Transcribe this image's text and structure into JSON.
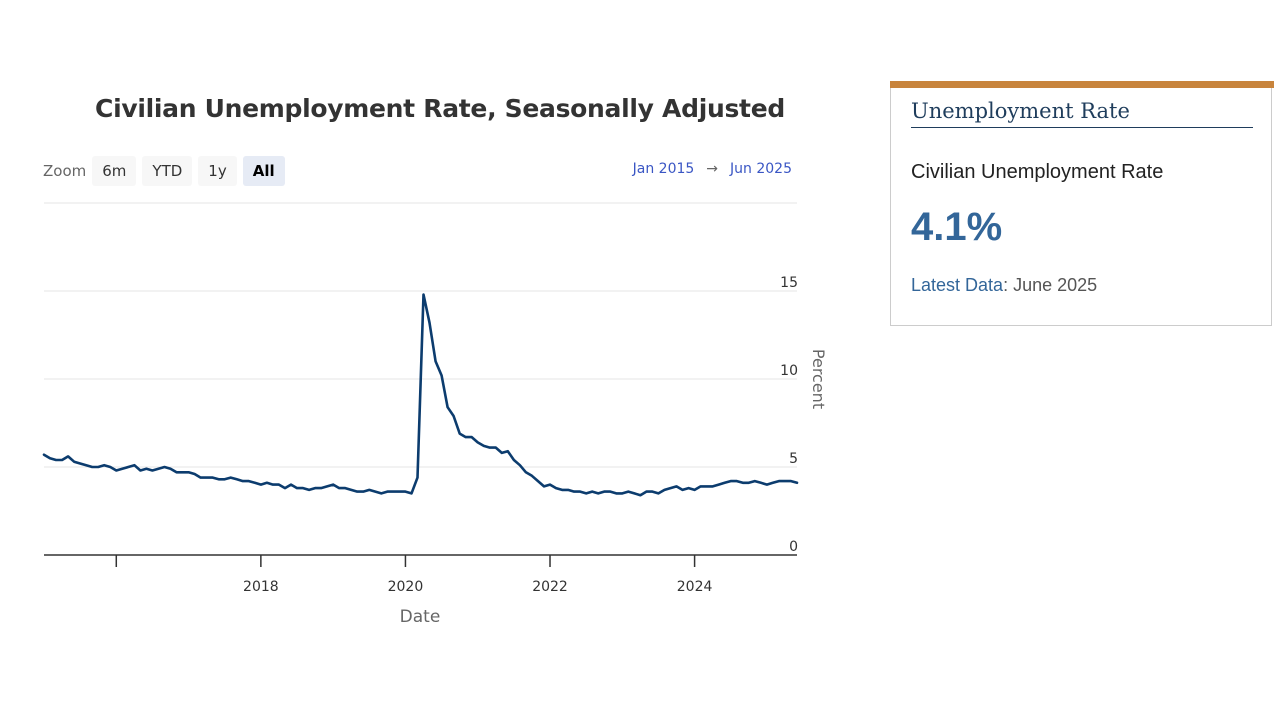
{
  "chart_data": {
    "type": "line",
    "title": "Civilian Unemployment Rate, Seasonally Adjusted",
    "xlabel": "Date",
    "ylabel": "Percent",
    "x_tick_labels": [
      "2018",
      "2020",
      "2022",
      "2024"
    ],
    "y_ticks": [
      0,
      5,
      10,
      15
    ],
    "ylim": [
      0,
      15
    ],
    "xlim": [
      "2015-01",
      "2025-06"
    ],
    "grid": true,
    "series": [
      {
        "color": "#0c3c6e",
        "x": [
          "2015-01",
          "2015-02",
          "2015-03",
          "2015-04",
          "2015-05",
          "2015-06",
          "2015-07",
          "2015-08",
          "2015-09",
          "2015-10",
          "2015-11",
          "2015-12",
          "2016-01",
          "2016-02",
          "2016-03",
          "2016-04",
          "2016-05",
          "2016-06",
          "2016-07",
          "2016-08",
          "2016-09",
          "2016-10",
          "2016-11",
          "2016-12",
          "2017-01",
          "2017-02",
          "2017-03",
          "2017-04",
          "2017-05",
          "2017-06",
          "2017-07",
          "2017-08",
          "2017-09",
          "2017-10",
          "2017-11",
          "2017-12",
          "2018-01",
          "2018-02",
          "2018-03",
          "2018-04",
          "2018-05",
          "2018-06",
          "2018-07",
          "2018-08",
          "2018-09",
          "2018-10",
          "2018-11",
          "2018-12",
          "2019-01",
          "2019-02",
          "2019-03",
          "2019-04",
          "2019-05",
          "2019-06",
          "2019-07",
          "2019-08",
          "2019-09",
          "2019-10",
          "2019-11",
          "2019-12",
          "2020-01",
          "2020-02",
          "2020-03",
          "2020-04",
          "2020-05",
          "2020-06",
          "2020-07",
          "2020-08",
          "2020-09",
          "2020-10",
          "2020-11",
          "2020-12",
          "2021-01",
          "2021-02",
          "2021-03",
          "2021-04",
          "2021-05",
          "2021-06",
          "2021-07",
          "2021-08",
          "2021-09",
          "2021-10",
          "2021-11",
          "2021-12",
          "2022-01",
          "2022-02",
          "2022-03",
          "2022-04",
          "2022-05",
          "2022-06",
          "2022-07",
          "2022-08",
          "2022-09",
          "2022-10",
          "2022-11",
          "2022-12",
          "2023-01",
          "2023-02",
          "2023-03",
          "2023-04",
          "2023-05",
          "2023-06",
          "2023-07",
          "2023-08",
          "2023-09",
          "2023-10",
          "2023-11",
          "2023-12",
          "2024-01",
          "2024-02",
          "2024-03",
          "2024-04",
          "2024-05",
          "2024-06",
          "2024-07",
          "2024-08",
          "2024-09",
          "2024-10",
          "2024-11",
          "2024-12",
          "2025-01",
          "2025-02",
          "2025-03",
          "2025-04",
          "2025-05",
          "2025-06"
        ],
        "values": [
          5.7,
          5.5,
          5.4,
          5.4,
          5.6,
          5.3,
          5.2,
          5.1,
          5.0,
          5.0,
          5.1,
          5.0,
          4.8,
          4.9,
          5.0,
          5.1,
          4.8,
          4.9,
          4.8,
          4.9,
          5.0,
          4.9,
          4.7,
          4.7,
          4.7,
          4.6,
          4.4,
          4.4,
          4.4,
          4.3,
          4.3,
          4.4,
          4.3,
          4.2,
          4.2,
          4.1,
          4.0,
          4.1,
          4.0,
          4.0,
          3.8,
          4.0,
          3.8,
          3.8,
          3.7,
          3.8,
          3.8,
          3.9,
          4.0,
          3.8,
          3.8,
          3.7,
          3.6,
          3.6,
          3.7,
          3.6,
          3.5,
          3.6,
          3.6,
          3.6,
          3.6,
          3.5,
          4.4,
          14.8,
          13.2,
          11.0,
          10.2,
          8.4,
          7.9,
          6.9,
          6.7,
          6.7,
          6.4,
          6.2,
          6.1,
          6.1,
          5.8,
          5.9,
          5.4,
          5.1,
          4.7,
          4.5,
          4.2,
          3.9,
          4.0,
          3.8,
          3.7,
          3.7,
          3.6,
          3.6,
          3.5,
          3.6,
          3.5,
          3.6,
          3.6,
          3.5,
          3.5,
          3.6,
          3.5,
          3.4,
          3.6,
          3.6,
          3.5,
          3.7,
          3.8,
          3.9,
          3.7,
          3.8,
          3.7,
          3.9,
          3.9,
          3.9,
          4.0,
          4.1,
          4.2,
          4.2,
          4.1,
          4.1,
          4.2,
          4.1,
          4.0,
          4.1,
          4.2,
          4.2,
          4.2,
          4.1
        ]
      }
    ]
  },
  "controls": {
    "zoom_label": "Zoom",
    "zoom_options": [
      "6m",
      "YTD",
      "1y",
      "All"
    ],
    "active_zoom": "All",
    "range_start": "Jan 2015",
    "range_arrow": "→",
    "range_end": "Jun 2025"
  },
  "card": {
    "heading": "Unemployment Rate",
    "subtitle": "Civilian Unemployment Rate",
    "value": "4.1%",
    "latest_label": "Latest Data",
    "latest_sep": ":",
    "latest_value": " June 2025",
    "accent_color": "#c8843c",
    "value_color": "#336699"
  }
}
